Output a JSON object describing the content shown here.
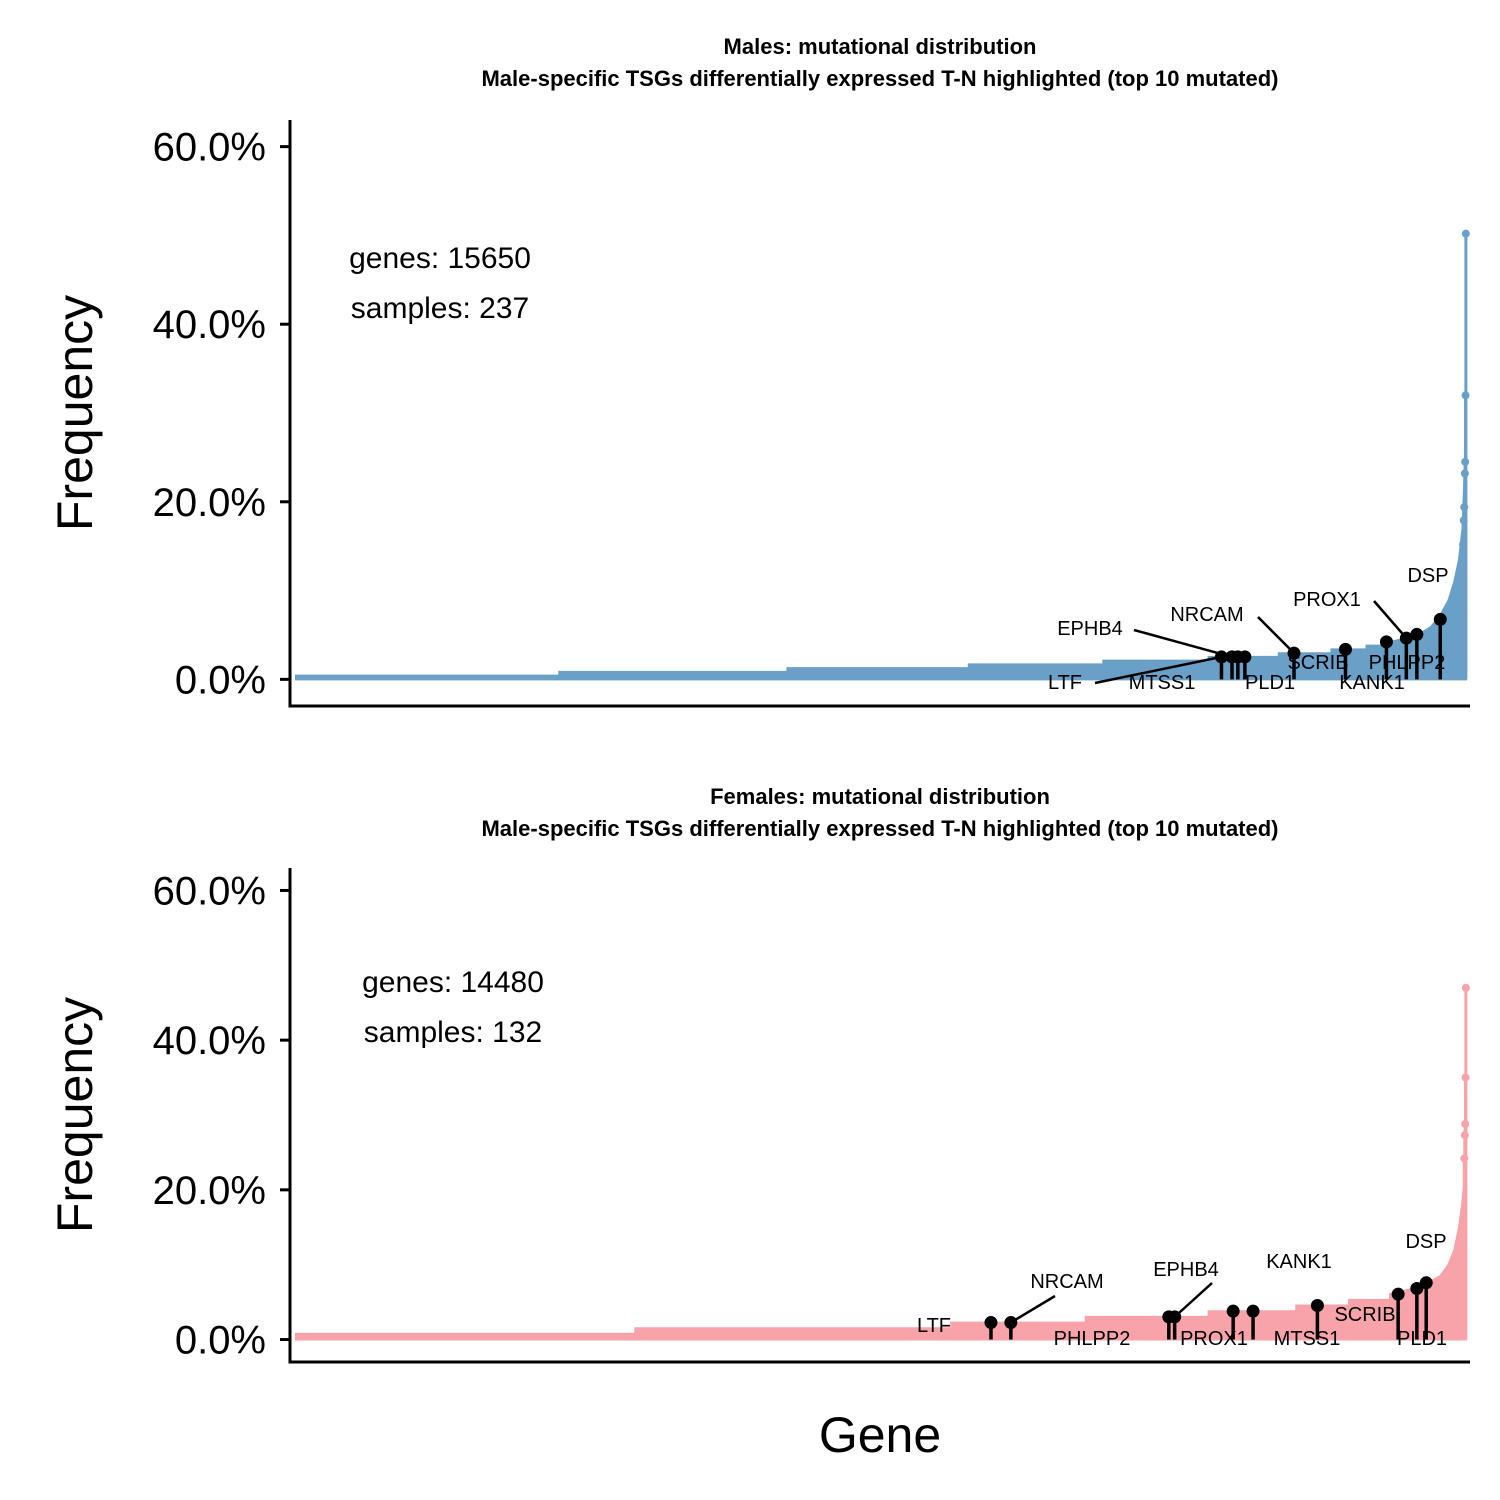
{
  "chart_data": [
    {
      "type": "area",
      "title_lines": [
        "Males: mutational distribution",
        "Male-specific TSGs differentially expressed T-N highlighted (top 10 mutated)"
      ],
      "ylabel": "Frequency",
      "xlabel": "",
      "ylim": [
        -3,
        63
      ],
      "yticks": [
        0,
        20,
        40,
        60
      ],
      "ytick_labels": [
        "0.0%",
        "20.0%",
        "40.0%",
        "60.0%"
      ],
      "fill_color": "#6a9fc8",
      "stats": [
        "genes:  15650",
        "samples:  237"
      ],
      "distribution": [
        {
          "rank": 0.0,
          "freq": 0.42
        },
        {
          "rank": 0.225,
          "freq": 0.42
        },
        {
          "rank": 0.225,
          "freq": 0.84
        },
        {
          "rank": 0.42,
          "freq": 0.84
        },
        {
          "rank": 0.42,
          "freq": 1.27
        },
        {
          "rank": 0.575,
          "freq": 1.27
        },
        {
          "rank": 0.575,
          "freq": 1.69
        },
        {
          "rank": 0.69,
          "freq": 1.69
        },
        {
          "rank": 0.69,
          "freq": 2.11
        },
        {
          "rank": 0.78,
          "freq": 2.11
        },
        {
          "rank": 0.78,
          "freq": 2.53
        },
        {
          "rank": 0.84,
          "freq": 2.53
        },
        {
          "rank": 0.84,
          "freq": 2.95
        },
        {
          "rank": 0.885,
          "freq": 2.95
        },
        {
          "rank": 0.885,
          "freq": 3.38
        },
        {
          "rank": 0.915,
          "freq": 3.38
        },
        {
          "rank": 0.915,
          "freq": 3.8
        },
        {
          "rank": 0.935,
          "freq": 3.8
        },
        {
          "rank": 0.935,
          "freq": 4.22
        },
        {
          "rank": 0.95,
          "freq": 4.64
        },
        {
          "rank": 0.96,
          "freq": 5.06
        },
        {
          "rank": 0.97,
          "freq": 5.9
        },
        {
          "rank": 0.978,
          "freq": 7.2
        },
        {
          "rank": 0.985,
          "freq": 8.9
        },
        {
          "rank": 0.99,
          "freq": 11.0
        },
        {
          "rank": 0.994,
          "freq": 13.5
        },
        {
          "rank": 0.997,
          "freq": 17.0
        },
        {
          "rank": 0.999,
          "freq": 24.0
        },
        {
          "rank": 1.0,
          "freq": 31.9
        }
      ],
      "top_points": [
        {
          "rank": 0.9999,
          "freq": 50.2
        },
        {
          "rank": 0.9996,
          "freq": 32.0
        },
        {
          "rank": 0.9993,
          "freq": 24.5
        },
        {
          "rank": 0.999,
          "freq": 23.2
        },
        {
          "rank": 0.9985,
          "freq": 19.4
        },
        {
          "rank": 0.998,
          "freq": 17.9
        },
        {
          "rank": 0.9975,
          "freq": 15.2
        }
      ],
      "highlighted_genes": [
        {
          "gene": "LTF",
          "rank": 0.791,
          "freq": 2.53
        },
        {
          "gene": "EPHB4",
          "rank": 0.8,
          "freq": 2.53
        },
        {
          "gene": "MTSS1",
          "rank": 0.805,
          "freq": 2.53
        },
        {
          "gene": "PLD1",
          "rank": 0.811,
          "freq": 2.53
        },
        {
          "gene": "NRCAM",
          "rank": 0.853,
          "freq": 2.95
        },
        {
          "gene": "SCRIB",
          "rank": 0.897,
          "freq": 3.38
        },
        {
          "gene": "KANK1",
          "rank": 0.932,
          "freq": 4.22
        },
        {
          "gene": "PROX1",
          "rank": 0.949,
          "freq": 4.64
        },
        {
          "gene": "PHLPP2",
          "rank": 0.958,
          "freq": 5.06
        },
        {
          "gene": "DSP",
          "rank": 0.978,
          "freq": 6.75
        }
      ]
    },
    {
      "type": "area",
      "title_lines": [
        "Females: mutational distribution",
        "Male-specific TSGs differentially expressed T-N highlighted (top 10 mutated)"
      ],
      "ylabel": "Frequency",
      "xlabel": "Gene",
      "ylim": [
        -3,
        63
      ],
      "yticks": [
        0,
        20,
        40,
        60
      ],
      "ytick_labels": [
        "0.0%",
        "20.0%",
        "40.0%",
        "60.0%"
      ],
      "fill_color": "#f7a3a9",
      "stats": [
        "genes:  14480",
        "samples:  132"
      ],
      "distribution": [
        {
          "rank": 0.0,
          "freq": 0.76
        },
        {
          "rank": 0.29,
          "freq": 0.76
        },
        {
          "rank": 0.29,
          "freq": 1.52
        },
        {
          "rank": 0.56,
          "freq": 1.52
        },
        {
          "rank": 0.56,
          "freq": 2.27
        },
        {
          "rank": 0.675,
          "freq": 2.27
        },
        {
          "rank": 0.675,
          "freq": 3.03
        },
        {
          "rank": 0.78,
          "freq": 3.03
        },
        {
          "rank": 0.78,
          "freq": 3.79
        },
        {
          "rank": 0.855,
          "freq": 3.79
        },
        {
          "rank": 0.855,
          "freq": 4.55
        },
        {
          "rank": 0.9,
          "freq": 4.55
        },
        {
          "rank": 0.9,
          "freq": 5.3
        },
        {
          "rank": 0.935,
          "freq": 5.3
        },
        {
          "rank": 0.935,
          "freq": 6.06
        },
        {
          "rank": 0.955,
          "freq": 6.82
        },
        {
          "rank": 0.968,
          "freq": 7.58
        },
        {
          "rank": 0.978,
          "freq": 8.5
        },
        {
          "rank": 0.985,
          "freq": 10.0
        },
        {
          "rank": 0.99,
          "freq": 12.0
        },
        {
          "rank": 0.994,
          "freq": 15.0
        },
        {
          "rank": 0.997,
          "freq": 18.5
        },
        {
          "rank": 0.999,
          "freq": 22.0
        },
        {
          "rank": 1.0,
          "freq": 24.2
        }
      ],
      "top_points": [
        {
          "rank": 0.9999,
          "freq": 47.0
        },
        {
          "rank": 0.9996,
          "freq": 35.0
        },
        {
          "rank": 0.9993,
          "freq": 28.8
        },
        {
          "rank": 0.999,
          "freq": 27.3
        },
        {
          "rank": 0.9985,
          "freq": 24.2
        }
      ],
      "highlighted_genes": [
        {
          "gene": "LTF",
          "rank": 0.594,
          "freq": 2.27
        },
        {
          "gene": "NRCAM",
          "rank": 0.611,
          "freq": 2.27
        },
        {
          "gene": "PHLPP2",
          "rank": 0.746,
          "freq": 3.03
        },
        {
          "gene": "EPHB4",
          "rank": 0.751,
          "freq": 3.03
        },
        {
          "gene": "PROX1",
          "rank": 0.801,
          "freq": 3.79
        },
        {
          "gene": "MTSS1",
          "rank": 0.818,
          "freq": 3.79
        },
        {
          "gene": "KANK1",
          "rank": 0.873,
          "freq": 4.55
        },
        {
          "gene": "SCRIB",
          "rank": 0.942,
          "freq": 6.06
        },
        {
          "gene": "PLD1",
          "rank": 0.958,
          "freq": 6.82
        },
        {
          "gene": "DSP",
          "rank": 0.966,
          "freq": 7.58
        }
      ]
    }
  ]
}
